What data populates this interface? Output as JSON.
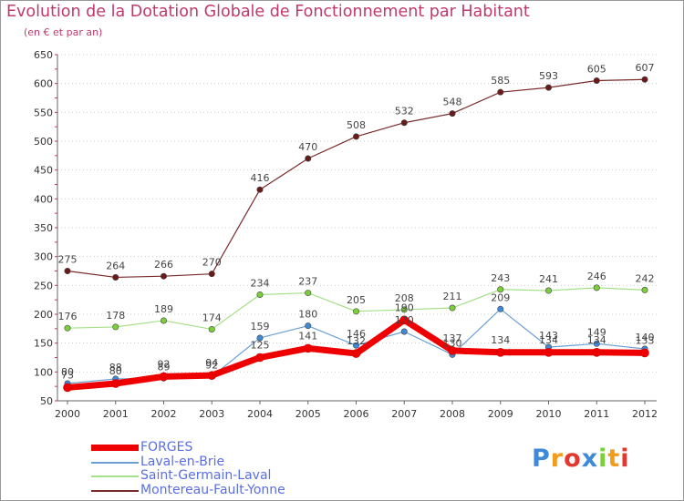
{
  "chart_data": {
    "type": "line",
    "title": "Evolution de la Dotation Globale de Fonctionnement par Habitant",
    "subtitle": "(en € et par an)",
    "x": [
      "2000",
      "2001",
      "2002",
      "2003",
      "2004",
      "2005",
      "2006",
      "2007",
      "2008",
      "2009",
      "2010",
      "2011",
      "2012"
    ],
    "ylim": [
      50,
      650
    ],
    "yticks": [
      "50",
      "100",
      "150",
      "200",
      "250",
      "300",
      "350",
      "400",
      "450",
      "500",
      "550",
      "600",
      "650"
    ],
    "series": [
      {
        "name": "Montereau-Fault-Yonne",
        "color": "#7a2a2a",
        "width": 1.2,
        "marker": "#6b1a1a",
        "values": [
          275,
          264,
          266,
          270,
          416,
          470,
          508,
          532,
          548,
          585,
          593,
          605,
          607
        ]
      },
      {
        "name": "Saint-Germain-Laval",
        "color": "#a6e08a",
        "width": 1.2,
        "marker": "#7ccf3a",
        "values": [
          176,
          178,
          189,
          174,
          234,
          237,
          205,
          208,
          211,
          243,
          241,
          246,
          242
        ]
      },
      {
        "name": "Laval-en-Brie",
        "color": "#6a9fd4",
        "width": 1.2,
        "marker": "#3f8ad6",
        "values": [
          80,
          88,
          89,
          92,
          159,
          180,
          146,
          170,
          130,
          209,
          143,
          149,
          140
        ]
      },
      {
        "name": "FORGES",
        "color": "#ee0000",
        "width": 7,
        "marker": "#ee0000",
        "values": [
          73,
          80,
          92,
          94,
          125,
          141,
          132,
          190,
          137,
          134,
          134,
          134,
          133
        ]
      }
    ],
    "data_labels": [
      [
        "275",
        "264",
        "266",
        "270",
        "416",
        "470",
        "508",
        "532",
        "548",
        "585",
        "593",
        "605",
        "607"
      ],
      [
        "176",
        "178",
        "189",
        "174",
        "234",
        "237",
        "205",
        "208",
        "211",
        "243",
        "241",
        "246",
        "242"
      ],
      [
        "80",
        "88",
        "89",
        "92",
        "159",
        "180",
        "146",
        "170",
        "130",
        "209",
        "143",
        "149",
        "140"
      ],
      [
        "73",
        "80",
        "92",
        "94",
        "125",
        "141",
        "132",
        "190",
        "137",
        "134",
        "134",
        "134",
        "133"
      ]
    ],
    "legend": [
      "FORGES",
      "Laval-en-Brie",
      "Saint-Germain-Laval",
      "Montereau-Fault-Yonne"
    ]
  },
  "logo": {
    "text": "Proxiti",
    "letters": [
      "P",
      "r",
      "o",
      "x",
      "i",
      "t",
      "i"
    ],
    "colors": [
      "#3f8ad6",
      "#f29c1e",
      "#e3382e",
      "#3f8ad6",
      "#7ccf3a",
      "#f29c1e",
      "#e3382e"
    ]
  }
}
